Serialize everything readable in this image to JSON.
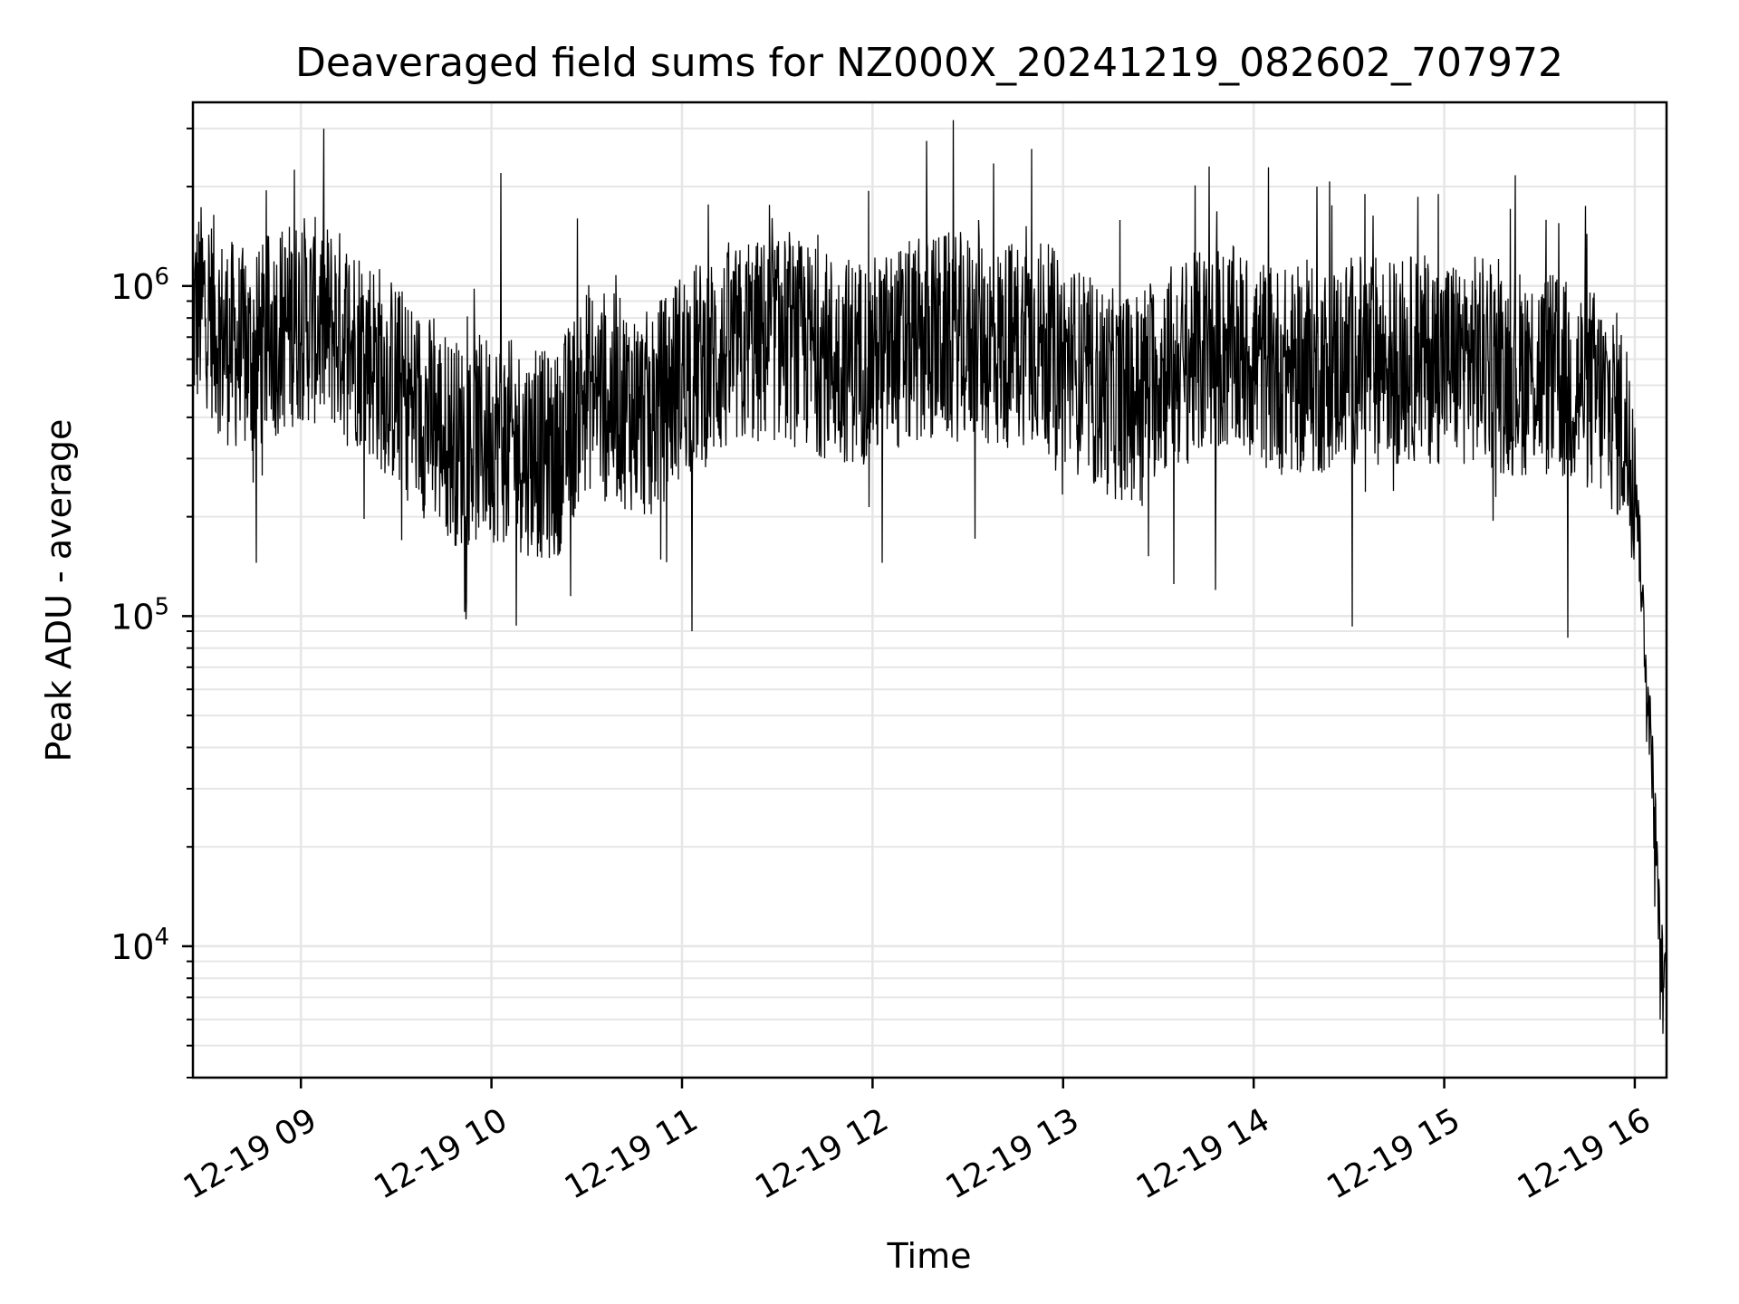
{
  "chart_data": {
    "type": "line",
    "title": "Deaveraged field sums for NZ000X_20241219_082602_707972",
    "xlabel": "Time",
    "ylabel": "Peak ADU - average",
    "yscale": "log",
    "ylim": [
      4000,
      3600000
    ],
    "xlim": [
      "2024-12-19 08:26",
      "2024-12-19 16:10"
    ],
    "grid": true,
    "line_color": "#000000",
    "grid_color": "#e6e6e6",
    "x_ticks": [
      {
        "value": "2024-12-19 09:00",
        "label": "12-19 09"
      },
      {
        "value": "2024-12-19 10:00",
        "label": "12-19 10"
      },
      {
        "value": "2024-12-19 11:00",
        "label": "12-19 11"
      },
      {
        "value": "2024-12-19 12:00",
        "label": "12-19 12"
      },
      {
        "value": "2024-12-19 13:00",
        "label": "12-19 13"
      },
      {
        "value": "2024-12-19 14:00",
        "label": "12-19 14"
      },
      {
        "value": "2024-12-19 15:00",
        "label": "12-19 15"
      },
      {
        "value": "2024-12-19 16:00",
        "label": "12-19 16"
      }
    ],
    "y_ticks": [
      {
        "value": 10000,
        "base": "10",
        "exp": "4"
      },
      {
        "value": 100000,
        "base": "10",
        "exp": "5"
      },
      {
        "value": 1000000,
        "base": "10",
        "exp": "6"
      }
    ],
    "series": [
      {
        "x": [
          "2024-12-19 08:26",
          "2024-12-19 08:30",
          "2024-12-19 08:35",
          "2024-12-19 08:40",
          "2024-12-19 08:45",
          "2024-12-19 08:50",
          "2024-12-19 08:55",
          "2024-12-19 09:00",
          "2024-12-19 09:10",
          "2024-12-19 09:20",
          "2024-12-19 09:30",
          "2024-12-19 09:40",
          "2024-12-19 09:50",
          "2024-12-19 10:00",
          "2024-12-19 10:10",
          "2024-12-19 10:20",
          "2024-12-19 10:30",
          "2024-12-19 10:40",
          "2024-12-19 10:50",
          "2024-12-19 11:00",
          "2024-12-19 11:10",
          "2024-12-19 11:20",
          "2024-12-19 11:30",
          "2024-12-19 11:40",
          "2024-12-19 11:50",
          "2024-12-19 12:00",
          "2024-12-19 12:10",
          "2024-12-19 12:20",
          "2024-12-19 12:30",
          "2024-12-19 12:40",
          "2024-12-19 12:50",
          "2024-12-19 13:00",
          "2024-12-19 13:10",
          "2024-12-19 13:20",
          "2024-12-19 13:30",
          "2024-12-19 13:40",
          "2024-12-19 13:50",
          "2024-12-19 14:00",
          "2024-12-19 14:10",
          "2024-12-19 14:20",
          "2024-12-19 14:30",
          "2024-12-19 14:40",
          "2024-12-19 14:50",
          "2024-12-19 15:00",
          "2024-12-19 15:10",
          "2024-12-19 15:20",
          "2024-12-19 15:30",
          "2024-12-19 15:40",
          "2024-12-19 15:45",
          "2024-12-19 15:50",
          "2024-12-19 15:55",
          "2024-12-19 16:00",
          "2024-12-19 16:02",
          "2024-12-19 16:04",
          "2024-12-19 16:06",
          "2024-12-19 16:08",
          "2024-12-19 16:10"
        ],
        "y": [
          800000,
          900000,
          700000,
          650000,
          600000,
          700000,
          750000,
          800000,
          750000,
          650000,
          500000,
          400000,
          330000,
          350000,
          320000,
          300000,
          500000,
          450000,
          400000,
          550000,
          600000,
          650000,
          700000,
          650000,
          600000,
          600000,
          650000,
          700000,
          700000,
          650000,
          700000,
          600000,
          500000,
          450000,
          550000,
          600000,
          650000,
          600000,
          550000,
          550000,
          600000,
          600000,
          600000,
          600000,
          600000,
          550000,
          550000,
          500000,
          500000,
          450000,
          400000,
          300000,
          130000,
          60000,
          30000,
          10000,
          7000
        ],
        "spike_high": [
          [
            "2024-12-19 08:49",
            1950000
          ],
          [
            "2024-12-19 08:58",
            2250000
          ],
          [
            "2024-12-19 10:03",
            2200000
          ],
          [
            "2024-12-19 12:17",
            2750000
          ],
          [
            "2024-12-19 12:38",
            2350000
          ],
          [
            "2024-12-19 12:50",
            2600000
          ],
          [
            "2024-12-19 13:46",
            2300000
          ],
          [
            "2024-12-19 14:20",
            2000000
          ],
          [
            "2024-12-19 14:35",
            1900000
          ],
          [
            "2024-12-19 14:58",
            1900000
          ],
          [
            "2024-12-19 15:36",
            1550000
          ]
        ],
        "spike_low": [
          [
            "2024-12-19 08:46",
            145000
          ],
          [
            "2024-12-19 09:52",
            110000
          ],
          [
            "2024-12-19 10:25",
            115000
          ],
          [
            "2024-12-19 11:03",
            90000
          ],
          [
            "2024-12-19 12:03",
            145000
          ],
          [
            "2024-12-19 13:35",
            125000
          ],
          [
            "2024-12-19 13:48",
            120000
          ],
          [
            "2024-12-19 14:31",
            93000
          ],
          [
            "2024-12-19 15:39",
            86000
          ],
          [
            "2024-12-19 16:08",
            6000
          ],
          [
            "2024-12-19 16:10",
            5200
          ]
        ]
      }
    ]
  }
}
